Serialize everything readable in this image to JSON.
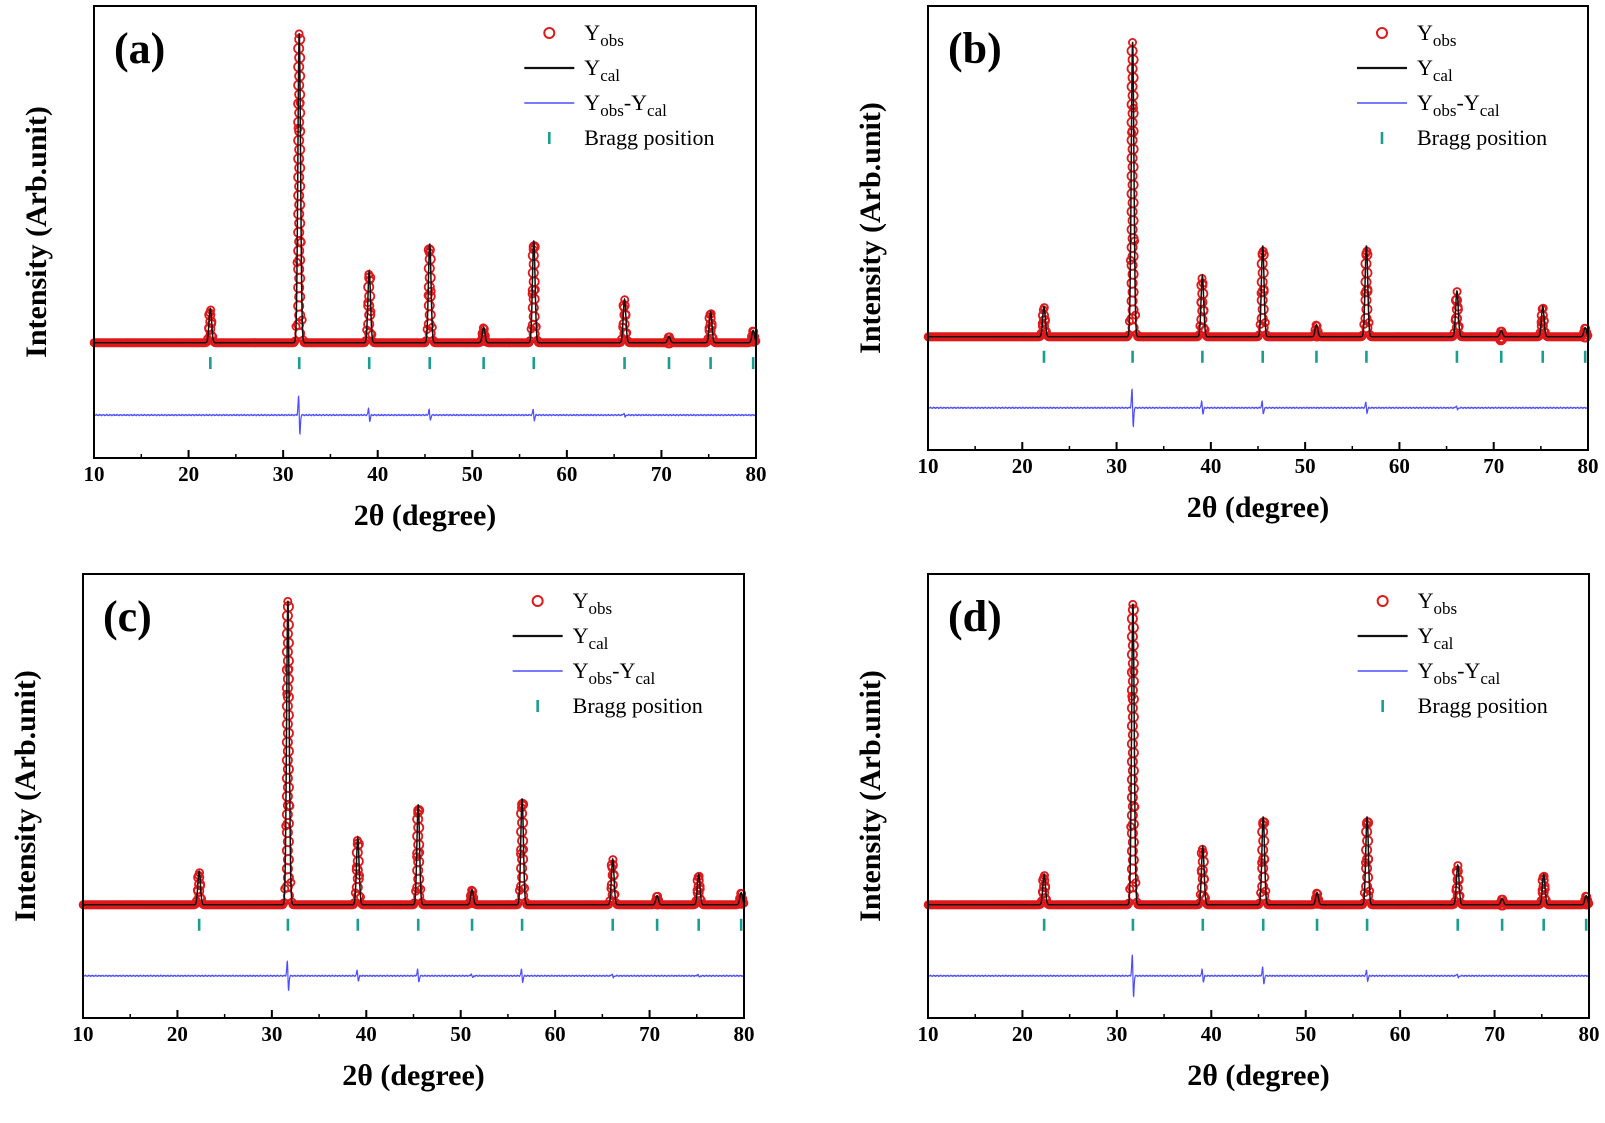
{
  "figure": {
    "chart_data": [
      {
        "type": "line",
        "panel_label": "(a)",
        "xlabel": "2θ (degree)",
        "ylabel": "Intensity (Arb.unit)",
        "xlim": [
          10,
          80
        ],
        "xticks": [
          "10",
          "20",
          "30",
          "40",
          "50",
          "60",
          "70",
          "80"
        ],
        "background": 0.02,
        "peaks": [
          {
            "x": 22.3,
            "y": 0.11
          },
          {
            "x": 31.7,
            "y": 1.0
          },
          {
            "x": 39.1,
            "y": 0.23
          },
          {
            "x": 45.5,
            "y": 0.32
          },
          {
            "x": 51.2,
            "y": 0.05
          },
          {
            "x": 56.5,
            "y": 0.33
          },
          {
            "x": 66.1,
            "y": 0.14
          },
          {
            "x": 70.8,
            "y": 0.02
          },
          {
            "x": 75.2,
            "y": 0.1
          },
          {
            "x": 79.7,
            "y": 0.04
          }
        ],
        "bragg_positions": [
          22.3,
          31.7,
          39.1,
          45.5,
          51.2,
          56.5,
          66.1,
          70.8,
          75.2,
          79.7
        ],
        "difference_spikes": [
          {
            "x": 31.7,
            "y": 0.09
          },
          {
            "x": 39.1,
            "y": 0.03
          },
          {
            "x": 45.5,
            "y": 0.025
          },
          {
            "x": 56.5,
            "y": 0.025
          },
          {
            "x": 66.1,
            "y": 0.01
          }
        ],
        "legend": {
          "placement": "top-right",
          "entries": [
            {
              "main": "Y",
              "sub": "obs",
              "main2": "",
              "sub2": "",
              "style": "marker",
              "color": "#e0191b"
            },
            {
              "main": "Y",
              "sub": "cal",
              "main2": "",
              "sub2": "",
              "style": "line",
              "color": "#111111"
            },
            {
              "main": "Y",
              "sub": "obs",
              "main2": "-Y",
              "sub2": "cal",
              "style": "line",
              "color": "#4d4dff"
            },
            {
              "main": "Bragg position",
              "sub": "",
              "main2": "",
              "sub2": "",
              "style": "tick",
              "color": "#1a9e90"
            }
          ]
        }
      },
      {
        "type": "line",
        "panel_label": "(b)",
        "xlabel": "2θ (degree)",
        "ylabel": "Intensity (Arb.unit)",
        "xlim": [
          10,
          80
        ],
        "xticks": [
          "10",
          "20",
          "30",
          "40",
          "50",
          "60",
          "70",
          "80"
        ],
        "background": 0.03,
        "peaks": [
          {
            "x": 22.3,
            "y": 0.1
          },
          {
            "x": 31.7,
            "y": 0.97
          },
          {
            "x": 39.1,
            "y": 0.2
          },
          {
            "x": 45.5,
            "y": 0.3
          },
          {
            "x": 51.2,
            "y": 0.04
          },
          {
            "x": 56.5,
            "y": 0.3
          },
          {
            "x": 66.1,
            "y": 0.15
          },
          {
            "x": 70.8,
            "y": 0.02
          },
          {
            "x": 75.2,
            "y": 0.1
          },
          {
            "x": 79.7,
            "y": 0.03
          }
        ],
        "bragg_positions": [
          22.3,
          31.7,
          39.1,
          45.5,
          51.2,
          56.5,
          66.1,
          70.8,
          75.2,
          79.7
        ],
        "difference_spikes": [
          {
            "x": 31.7,
            "y": 0.09
          },
          {
            "x": 39.1,
            "y": 0.03
          },
          {
            "x": 45.5,
            "y": 0.03
          },
          {
            "x": 56.5,
            "y": 0.025
          },
          {
            "x": 66.1,
            "y": 0.01
          }
        ],
        "legend": {
          "placement": "top-right",
          "entries": [
            {
              "main": "Y",
              "sub": "obs",
              "main2": "",
              "sub2": "",
              "style": "marker",
              "color": "#e0191b"
            },
            {
              "main": "Y",
              "sub": "cal",
              "main2": "",
              "sub2": "",
              "style": "line",
              "color": "#111111"
            },
            {
              "main": "Y",
              "sub": "obs",
              "main2": "-Y",
              "sub2": "cal",
              "style": "line",
              "color": "#4d4dff"
            },
            {
              "main": "Bragg position",
              "sub": "",
              "main2": "",
              "sub2": "",
              "style": "tick",
              "color": "#1a9e90"
            }
          ]
        }
      },
      {
        "type": "line",
        "panel_label": "(c)",
        "xlabel": "2θ (degree)",
        "ylabel": "Intensity (Arb.unit)",
        "xlim": [
          10,
          80
        ],
        "xticks": [
          "10",
          "20",
          "30",
          "40",
          "50",
          "60",
          "70",
          "80"
        ],
        "background": 0.02,
        "peaks": [
          {
            "x": 22.3,
            "y": 0.11
          },
          {
            "x": 31.7,
            "y": 1.0
          },
          {
            "x": 39.1,
            "y": 0.22
          },
          {
            "x": 45.5,
            "y": 0.33
          },
          {
            "x": 51.2,
            "y": 0.05
          },
          {
            "x": 56.5,
            "y": 0.35
          },
          {
            "x": 66.1,
            "y": 0.15
          },
          {
            "x": 70.8,
            "y": 0.03
          },
          {
            "x": 75.2,
            "y": 0.1
          },
          {
            "x": 79.7,
            "y": 0.04
          }
        ],
        "bragg_positions": [
          22.3,
          31.7,
          39.1,
          45.5,
          51.2,
          56.5,
          66.1,
          70.8,
          75.2,
          79.7
        ],
        "difference_spikes": [
          {
            "x": 31.7,
            "y": 0.07
          },
          {
            "x": 39.1,
            "y": 0.025
          },
          {
            "x": 45.5,
            "y": 0.03
          },
          {
            "x": 51.2,
            "y": 0.01
          },
          {
            "x": 56.5,
            "y": 0.03
          },
          {
            "x": 66.1,
            "y": 0.01
          },
          {
            "x": 75.2,
            "y": 0.008
          }
        ],
        "legend": {
          "placement": "top-right",
          "entries": [
            {
              "main": "Y",
              "sub": "obs",
              "main2": "",
              "sub2": "",
              "style": "marker",
              "color": "#e0191b"
            },
            {
              "main": "Y",
              "sub": "cal",
              "main2": "",
              "sub2": "",
              "style": "line",
              "color": "#111111"
            },
            {
              "main": "Y",
              "sub": "obs",
              "main2": "-Y",
              "sub2": "cal",
              "style": "line",
              "color": "#4d4dff"
            },
            {
              "main": "Bragg position",
              "sub": "",
              "main2": "",
              "sub2": "",
              "style": "tick",
              "color": "#1a9e90"
            }
          ]
        }
      },
      {
        "type": "line",
        "panel_label": "(d)",
        "xlabel": "2θ (degree)",
        "ylabel": "Intensity (Arb.unit)",
        "xlim": [
          10,
          80
        ],
        "xticks": [
          "10",
          "20",
          "30",
          "40",
          "50",
          "60",
          "70",
          "80"
        ],
        "background": 0.02,
        "peaks": [
          {
            "x": 22.3,
            "y": 0.1
          },
          {
            "x": 31.7,
            "y": 0.99
          },
          {
            "x": 39.1,
            "y": 0.19
          },
          {
            "x": 45.5,
            "y": 0.29
          },
          {
            "x": 51.2,
            "y": 0.04
          },
          {
            "x": 56.5,
            "y": 0.29
          },
          {
            "x": 66.1,
            "y": 0.13
          },
          {
            "x": 70.8,
            "y": 0.02
          },
          {
            "x": 75.2,
            "y": 0.1
          },
          {
            "x": 79.7,
            "y": 0.03
          }
        ],
        "bragg_positions": [
          22.3,
          31.7,
          39.1,
          45.5,
          51.2,
          56.5,
          66.1,
          70.8,
          75.2,
          79.7
        ],
        "difference_spikes": [
          {
            "x": 31.7,
            "y": 0.1
          },
          {
            "x": 39.1,
            "y": 0.03
          },
          {
            "x": 45.5,
            "y": 0.04
          },
          {
            "x": 56.5,
            "y": 0.025
          },
          {
            "x": 66.1,
            "y": 0.01
          }
        ],
        "legend": {
          "placement": "top-right",
          "entries": [
            {
              "main": "Y",
              "sub": "obs",
              "main2": "",
              "sub2": "",
              "style": "marker",
              "color": "#e0191b"
            },
            {
              "main": "Y",
              "sub": "cal",
              "main2": "",
              "sub2": "",
              "style": "line",
              "color": "#111111"
            },
            {
              "main": "Y",
              "sub": "obs",
              "main2": "-Y",
              "sub2": "cal",
              "style": "line",
              "color": "#4d4dff"
            },
            {
              "main": "Bragg position",
              "sub": "",
              "main2": "",
              "sub2": "",
              "style": "tick",
              "color": "#1a9e90"
            }
          ]
        }
      }
    ]
  }
}
